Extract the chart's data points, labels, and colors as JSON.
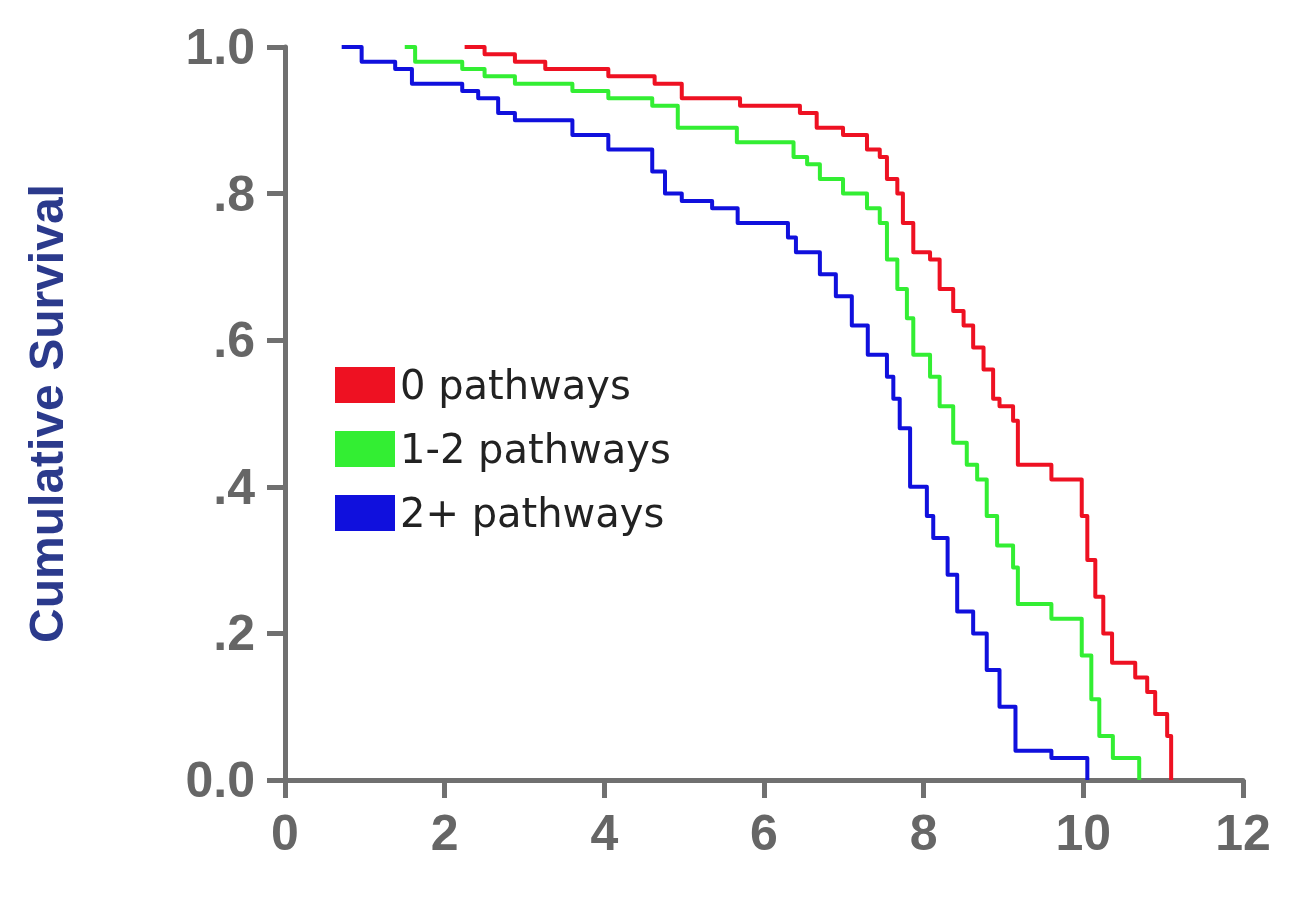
{
  "chart_data": {
    "type": "step",
    "ylabel": "Cumulative Survival",
    "xlim": [
      0,
      12
    ],
    "xticks": [
      0,
      2,
      4,
      6,
      8,
      10,
      12
    ],
    "ylim": [
      0,
      1
    ],
    "yticks": [
      {
        "value": 0,
        "label": "0.0"
      },
      {
        "value": 0.2,
        "label": ".2"
      },
      {
        "value": 0.4,
        "label": ".4"
      },
      {
        "value": 0.6,
        "label": ".6"
      },
      {
        "value": 0.8,
        "label": ".8"
      },
      {
        "value": 1,
        "label": "1.0"
      }
    ],
    "grid": false,
    "legend": "left",
    "marker": "none",
    "line_style": "solid",
    "series": [
      {
        "name": "0 pathways",
        "color": "#ee1122",
        "x": [
          2.25,
          2.5,
          2.88,
          3.26,
          3.67,
          4.05,
          4.63,
          4.97,
          5.7,
          6.33,
          6.45,
          6.66,
          6.99,
          7.29,
          7.45,
          7.54,
          7.67,
          7.74,
          7.87,
          8.08,
          8.2,
          8.37,
          8.5,
          8.62,
          8.75,
          8.87,
          8.95,
          9.12,
          9.18,
          9.6,
          9.98,
          10.05,
          10.15,
          10.25,
          10.36,
          10.65,
          10.8,
          10.9,
          11.05,
          11.1
        ],
        "values": [
          1.0,
          0.99,
          0.98,
          0.97,
          0.97,
          0.96,
          0.95,
          0.93,
          0.92,
          0.92,
          0.91,
          0.89,
          0.88,
          0.86,
          0.85,
          0.82,
          0.8,
          0.76,
          0.72,
          0.71,
          0.67,
          0.64,
          0.62,
          0.59,
          0.56,
          0.52,
          0.51,
          0.49,
          0.43,
          0.41,
          0.36,
          0.3,
          0.25,
          0.2,
          0.16,
          0.14,
          0.12,
          0.09,
          0.06,
          0.0
        ]
      },
      {
        "name": "1-2 pathways",
        "color": "#33ee33",
        "x": [
          1.5,
          1.63,
          2.22,
          2.5,
          2.88,
          3.6,
          4.05,
          4.6,
          4.92,
          5.66,
          6.37,
          6.54,
          6.7,
          6.99,
          7.29,
          7.45,
          7.54,
          7.67,
          7.79,
          7.87,
          8.08,
          8.2,
          8.37,
          8.54,
          8.67,
          8.79,
          8.92,
          9.12,
          9.18,
          9.6,
          9.98,
          10.1,
          10.2,
          10.37,
          10.7
        ],
        "values": [
          1.0,
          0.98,
          0.97,
          0.96,
          0.95,
          0.94,
          0.93,
          0.92,
          0.89,
          0.87,
          0.85,
          0.84,
          0.82,
          0.8,
          0.78,
          0.76,
          0.71,
          0.67,
          0.63,
          0.58,
          0.55,
          0.51,
          0.46,
          0.43,
          0.41,
          0.36,
          0.32,
          0.29,
          0.24,
          0.22,
          0.17,
          0.11,
          0.06,
          0.03,
          0.0
        ]
      },
      {
        "name": "2+ pathways",
        "color": "#1010dd",
        "x": [
          0.71,
          0.96,
          1.38,
          1.59,
          2.22,
          2.42,
          2.67,
          2.88,
          3.26,
          3.6,
          4.05,
          4.6,
          4.76,
          4.97,
          5.35,
          5.67,
          6.3,
          6.4,
          6.7,
          6.9,
          7.1,
          7.3,
          7.54,
          7.62,
          7.7,
          7.83,
          8.04,
          8.12,
          8.3,
          8.42,
          8.62,
          8.79,
          8.95,
          9.15,
          9.6,
          10.05
        ],
        "values": [
          1.0,
          0.98,
          0.97,
          0.95,
          0.94,
          0.93,
          0.91,
          0.9,
          0.9,
          0.88,
          0.86,
          0.83,
          0.8,
          0.79,
          0.78,
          0.76,
          0.74,
          0.72,
          0.69,
          0.66,
          0.62,
          0.58,
          0.55,
          0.52,
          0.48,
          0.4,
          0.36,
          0.33,
          0.28,
          0.23,
          0.2,
          0.15,
          0.1,
          0.04,
          0.03,
          0.0
        ]
      }
    ]
  }
}
